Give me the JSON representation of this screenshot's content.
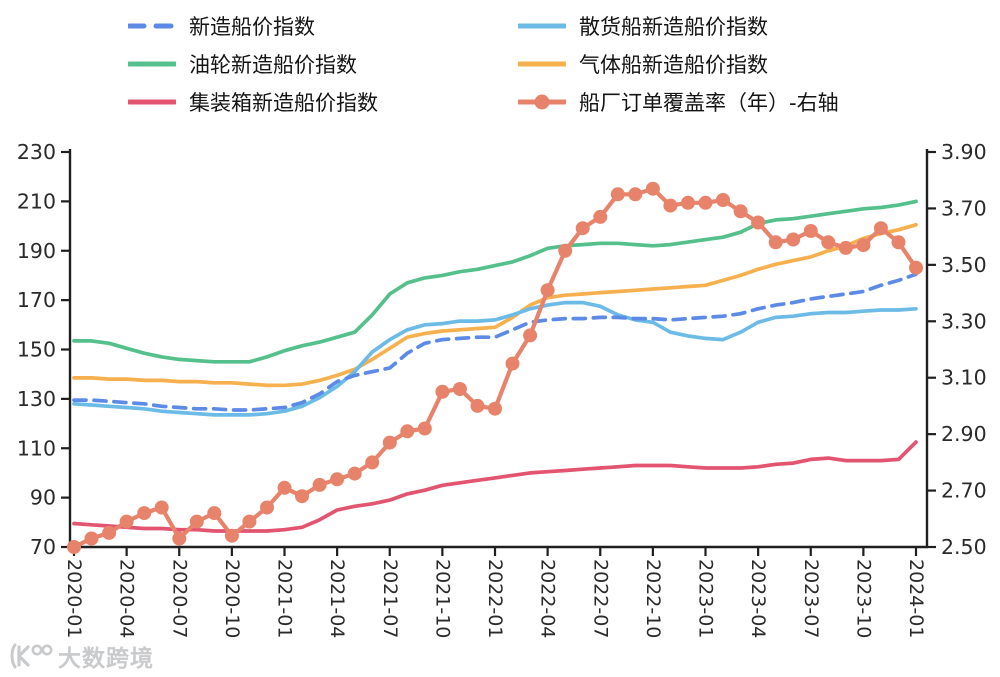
{
  "chart_data": {
    "type": "line",
    "x_frequency": "monthly",
    "x_range": [
      "2020-01",
      "2024-01"
    ],
    "x_tick_labels": [
      "2020-01",
      "2020-04",
      "2020-07",
      "2020-10",
      "2021-01",
      "2021-04",
      "2021-07",
      "2021-10",
      "2022-01",
      "2022-04",
      "2022-07",
      "2022-10",
      "2023-01",
      "2023-04",
      "2023-07",
      "2023-10",
      "2024-01"
    ],
    "left_axis": {
      "min": 70,
      "max": 230,
      "ticks": [
        230,
        210,
        190,
        170,
        150,
        130,
        110,
        90,
        70
      ]
    },
    "right_axis": {
      "min": 2.5,
      "max": 3.9,
      "ticks": [
        3.9,
        3.7,
        3.5,
        3.3,
        3.1,
        2.9,
        2.7,
        2.5
      ]
    },
    "grid": "off",
    "legend_position": "top",
    "series": [
      {
        "key": "newbuild_index",
        "label": "新造船价指数",
        "color": "#5c8ae6",
        "style": "dashed",
        "marker": "none",
        "axis": "left",
        "values": [
          129.5,
          129.5,
          129,
          128.5,
          128,
          127,
          126.5,
          126,
          126,
          125.5,
          125.5,
          126,
          126.5,
          128.5,
          132,
          137,
          139.5,
          141,
          142.5,
          148.5,
          152.5,
          154,
          154.5,
          155,
          155,
          158,
          161,
          162,
          162.5,
          162.5,
          163,
          163,
          162.5,
          162.5,
          162,
          162.5,
          163,
          163.5,
          164.5,
          166.5,
          168,
          169,
          170.5,
          171.5,
          172.5,
          173.5,
          176,
          178,
          180.5
        ]
      },
      {
        "key": "bulk_carrier",
        "label": "散货船新造船价指数",
        "color": "#6cbbe6",
        "style": "solid",
        "marker": "none",
        "axis": "left",
        "values": [
          128,
          127.5,
          127,
          126.5,
          126,
          125,
          124.5,
          124,
          123.5,
          123.5,
          123.5,
          124,
          125,
          127,
          130.5,
          135,
          141,
          149,
          154,
          158,
          160,
          160.5,
          161.5,
          161.5,
          162,
          164,
          166.5,
          168,
          169,
          169,
          167.5,
          164,
          162,
          161,
          157,
          155.5,
          154.5,
          154,
          157,
          161,
          163,
          163.5,
          164.5,
          165,
          165,
          165.5,
          166,
          166,
          166.5
        ]
      },
      {
        "key": "oil_tanker",
        "label": "油轮新造船价指数",
        "color": "#55c08c",
        "style": "solid",
        "marker": "none",
        "axis": "left",
        "values": [
          153.5,
          153.5,
          152.5,
          150.5,
          148.5,
          147,
          146,
          145.5,
          145,
          145,
          145,
          147,
          149.5,
          151.5,
          153,
          155,
          157,
          164,
          172.5,
          177,
          179,
          180,
          181.5,
          182.5,
          184,
          185.5,
          188,
          191,
          192,
          192.5,
          193,
          193,
          192.5,
          192,
          192.5,
          193.5,
          194.5,
          195.5,
          197.5,
          201,
          202.5,
          203,
          204,
          205,
          206,
          207,
          207.5,
          208.5,
          210
        ]
      },
      {
        "key": "gas_carrier",
        "label": "气体船新造船价指数",
        "color": "#f6b04e",
        "style": "solid",
        "marker": "none",
        "axis": "left",
        "values": [
          138.5,
          138.5,
          138,
          138,
          137.5,
          137.5,
          137,
          137,
          136.5,
          136.5,
          136,
          135.5,
          135.5,
          136,
          137.5,
          139.5,
          142,
          146,
          150.5,
          155,
          156.5,
          157.5,
          158,
          158.5,
          159,
          163,
          168,
          171,
          172,
          172.5,
          173,
          173.5,
          174,
          174.5,
          175,
          175.5,
          176,
          178,
          180,
          182.5,
          184.5,
          186,
          187.5,
          190,
          192,
          195,
          197,
          198.5,
          200.5
        ]
      },
      {
        "key": "container",
        "label": "集装箱新造船价指数",
        "color": "#e25470",
        "style": "solid",
        "marker": "none",
        "axis": "left",
        "values": [
          79.5,
          79,
          78.5,
          78,
          77.5,
          77.5,
          77,
          77,
          76.5,
          76.5,
          76.5,
          76.5,
          77,
          78,
          81,
          85,
          86.5,
          87.5,
          89,
          91.5,
          93,
          95,
          96,
          97,
          98,
          99,
          100,
          100.5,
          101,
          101.5,
          102,
          102.5,
          103,
          103,
          103,
          102.5,
          102,
          102,
          102,
          102.5,
          103.5,
          104,
          105.5,
          106,
          105,
          105,
          105,
          105.5,
          112.5
        ]
      },
      {
        "key": "order_coverage",
        "label": "船厂订单覆盖率（年）-右轴",
        "color": "#e8836b",
        "style": "solid",
        "marker": "circle",
        "axis": "right",
        "values": [
          2.5,
          2.53,
          2.55,
          2.59,
          2.62,
          2.64,
          2.53,
          2.59,
          2.62,
          2.54,
          2.59,
          2.64,
          2.71,
          2.68,
          2.72,
          2.74,
          2.76,
          2.8,
          2.87,
          2.91,
          2.92,
          3.05,
          3.06,
          3.0,
          2.99,
          3.15,
          3.25,
          3.41,
          3.55,
          3.63,
          3.67,
          3.75,
          3.75,
          3.77,
          3.71,
          3.72,
          3.72,
          3.73,
          3.69,
          3.65,
          3.58,
          3.59,
          3.62,
          3.58,
          3.56,
          3.57,
          3.63,
          3.58,
          3.49
        ]
      }
    ]
  },
  "watermark": {
    "logo_icon": "k100-logo-icon",
    "text": "大数跨境"
  }
}
